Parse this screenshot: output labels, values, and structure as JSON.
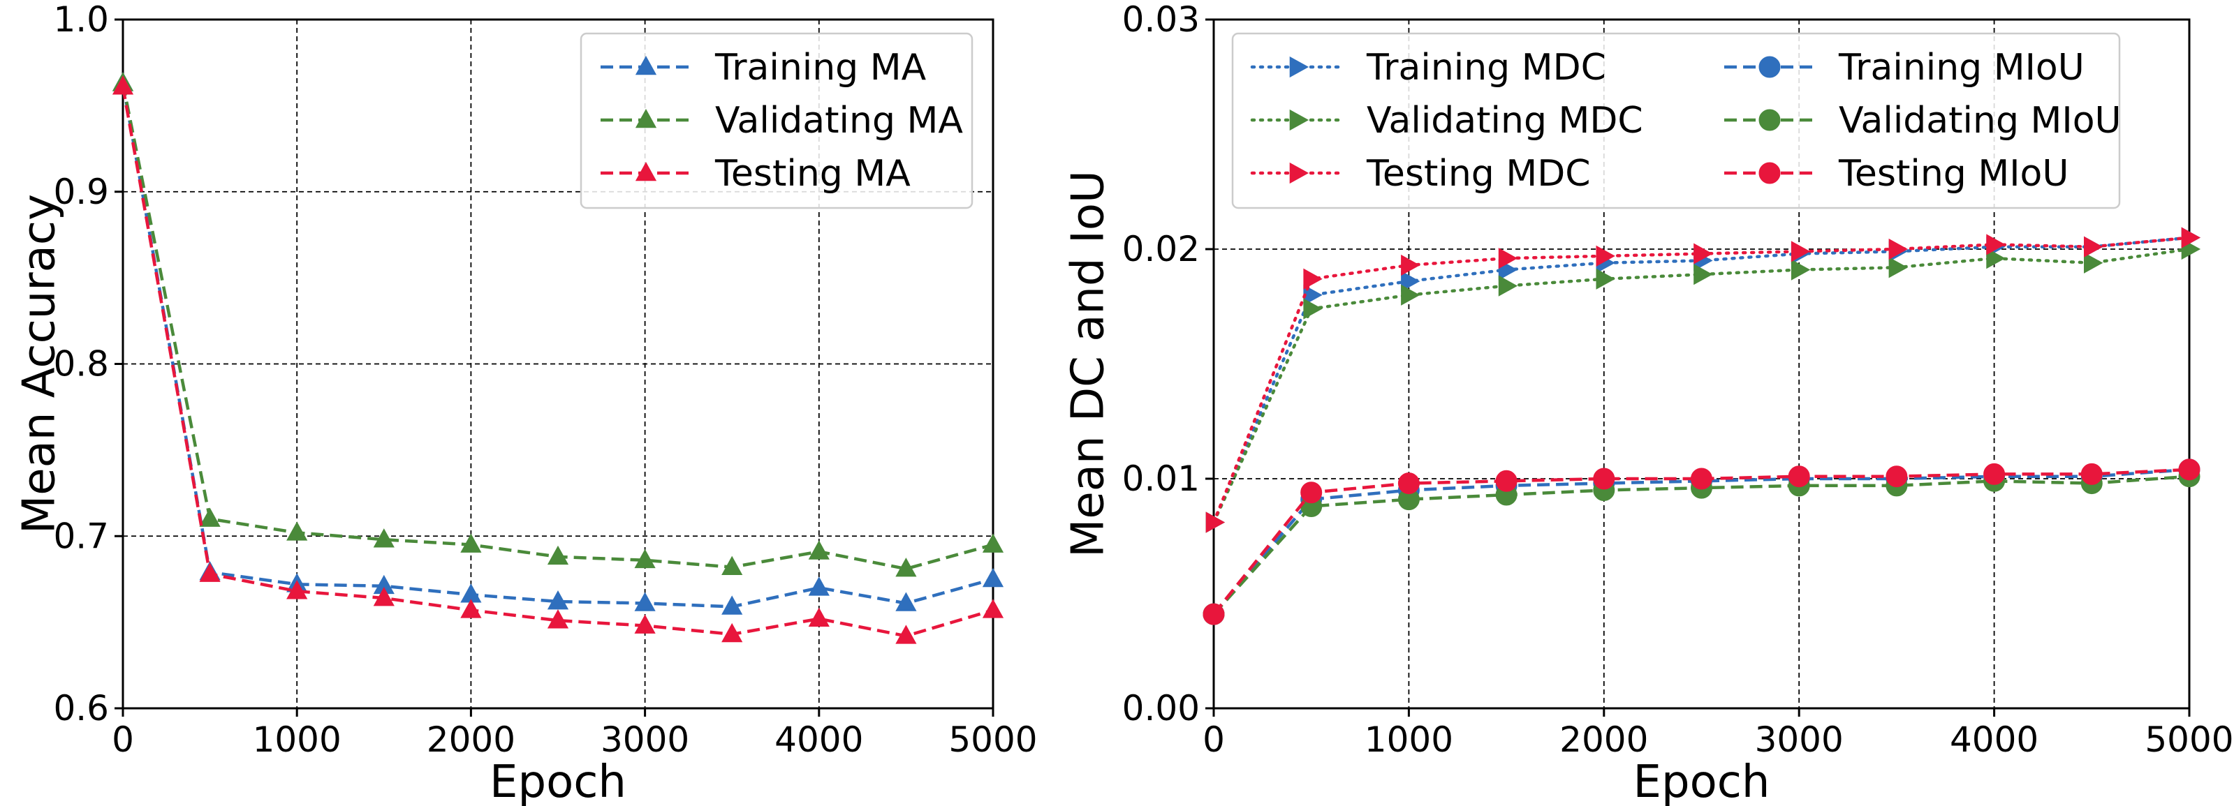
{
  "colors": {
    "training": "#2f6fbd",
    "validating": "#4a8a3a",
    "testing": "#e8163c",
    "grid": "#000000",
    "axis": "#000000"
  },
  "chart_data": [
    {
      "type": "line",
      "title": "",
      "xlabel": "Epoch",
      "ylabel": "Mean Accuracy",
      "xlim": [
        0,
        5000
      ],
      "ylim": [
        0.6,
        1.0
      ],
      "xticks": [
        0,
        1000,
        2000,
        3000,
        4000,
        5000
      ],
      "xtick_labels": [
        "0",
        "1000",
        "2000",
        "3000",
        "4000",
        "5000"
      ],
      "yticks": [
        0.6,
        0.7,
        0.8,
        0.9,
        1.0
      ],
      "ytick_labels": [
        "0.6",
        "0.7",
        "0.8",
        "0.9",
        "1.0"
      ],
      "grid": true,
      "legend_position": "top-right",
      "legend_columns": 1,
      "x": [
        0,
        500,
        1000,
        1500,
        2000,
        2500,
        3000,
        3500,
        4000,
        4500,
        5000
      ],
      "series": [
        {
          "name": "Training MA",
          "color_key": "training",
          "line_style": "dashed",
          "marker": "triangle-up",
          "values": [
            0.963,
            0.679,
            0.672,
            0.671,
            0.666,
            0.662,
            0.661,
            0.659,
            0.67,
            0.661,
            0.675
          ]
        },
        {
          "name": "Validating MA",
          "color_key": "validating",
          "line_style": "dashed",
          "marker": "triangle-up",
          "values": [
            0.963,
            0.71,
            0.702,
            0.698,
            0.695,
            0.688,
            0.686,
            0.682,
            0.691,
            0.681,
            0.695
          ]
        },
        {
          "name": "Testing MA",
          "color_key": "testing",
          "line_style": "dashed",
          "marker": "triangle-up",
          "values": [
            0.961,
            0.678,
            0.668,
            0.664,
            0.657,
            0.651,
            0.648,
            0.643,
            0.652,
            0.642,
            0.657
          ]
        }
      ]
    },
    {
      "type": "line",
      "title": "",
      "xlabel": "Epoch",
      "ylabel": "Mean DC and IoU",
      "xlim": [
        0,
        5000
      ],
      "ylim": [
        0.0,
        0.03
      ],
      "xticks": [
        0,
        1000,
        2000,
        3000,
        4000,
        5000
      ],
      "xtick_labels": [
        "0",
        "1000",
        "2000",
        "3000",
        "4000",
        "5000"
      ],
      "yticks": [
        0.0,
        0.01,
        0.02,
        0.03
      ],
      "ytick_labels": [
        "0.00",
        "0.01",
        "0.02",
        "0.03"
      ],
      "grid": true,
      "legend_position": "top",
      "legend_columns": 2,
      "x": [
        0,
        500,
        1000,
        1500,
        2000,
        2500,
        3000,
        3500,
        4000,
        4500,
        5000
      ],
      "series": [
        {
          "name": "Training MDC",
          "color_key": "training",
          "line_style": "dotted",
          "marker": "triangle-right",
          "values": [
            0.0081,
            0.018,
            0.0186,
            0.0191,
            0.0194,
            0.0195,
            0.0198,
            0.0199,
            0.0201,
            0.0201,
            0.0205
          ]
        },
        {
          "name": "Validating MDC",
          "color_key": "validating",
          "line_style": "dotted",
          "marker": "triangle-right",
          "values": [
            0.0081,
            0.0174,
            0.018,
            0.0184,
            0.0187,
            0.0189,
            0.0191,
            0.0192,
            0.0196,
            0.0194,
            0.02
          ]
        },
        {
          "name": "Testing MDC",
          "color_key": "testing",
          "line_style": "dotted",
          "marker": "triangle-right",
          "values": [
            0.0081,
            0.0187,
            0.0193,
            0.0196,
            0.0197,
            0.0198,
            0.0199,
            0.02,
            0.0202,
            0.0201,
            0.0205
          ]
        },
        {
          "name": "Training MIoU",
          "color_key": "training",
          "line_style": "dashed",
          "marker": "circle",
          "values": [
            0.0041,
            0.0091,
            0.0095,
            0.0097,
            0.0098,
            0.0099,
            0.01,
            0.01,
            0.0101,
            0.0101,
            0.0104
          ]
        },
        {
          "name": "Validating MIoU",
          "color_key": "validating",
          "line_style": "dashed",
          "marker": "circle",
          "values": [
            0.0041,
            0.0088,
            0.0091,
            0.0093,
            0.0095,
            0.0096,
            0.0097,
            0.0097,
            0.0099,
            0.0098,
            0.0101
          ]
        },
        {
          "name": "Testing MIoU",
          "color_key": "testing",
          "line_style": "dashed",
          "marker": "circle",
          "values": [
            0.0041,
            0.0094,
            0.0098,
            0.0099,
            0.01,
            0.01,
            0.0101,
            0.0101,
            0.0102,
            0.0102,
            0.0104
          ]
        }
      ]
    }
  ]
}
